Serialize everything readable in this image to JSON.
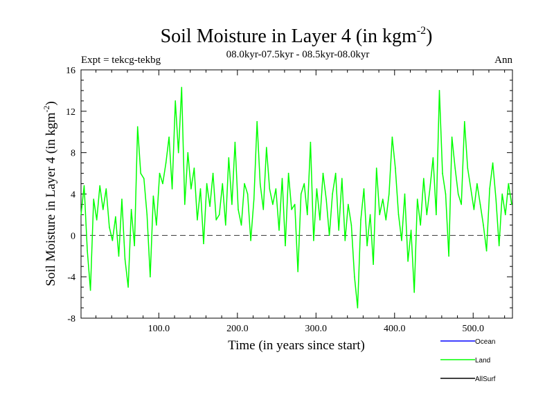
{
  "chart_data": {
    "type": "line",
    "title": "Soil Moisture in Layer 4 (in kgm",
    "title_sup": "-2",
    "title_close": ")",
    "subtitle": "08.0kyr-07.5kyr - 08.5kyr-08.0kyr",
    "expt_label": "Expt = tekcg-tekbg",
    "season_label": "Ann",
    "xlabel": "Time (in years since start)",
    "ylabel": "Soil Moisture in Layer 4 (in kgm",
    "ylabel_sup": "-2",
    "ylabel_close": ")",
    "xlim": [
      1,
      550
    ],
    "ylim": [
      -8,
      16
    ],
    "x_ticks": [
      100,
      200,
      300,
      400,
      500
    ],
    "x_tick_labels": [
      "100.0",
      "200.0",
      "300.0",
      "400.0",
      "500.0"
    ],
    "y_ticks": [
      -8,
      -4,
      0,
      4,
      8,
      12,
      16
    ],
    "y_tick_labels": [
      "-8",
      "-4",
      "0",
      "4",
      "8",
      "12",
      "16"
    ],
    "zero_line": 0,
    "legend": [
      {
        "name": "Ocean",
        "color": "#0000ff"
      },
      {
        "name": "Land",
        "color": "#00ff00"
      },
      {
        "name": "AllSurf",
        "color": "#000000"
      }
    ],
    "series": [
      {
        "name": "Land",
        "color": "#00ff00",
        "x": [
          1,
          5,
          9,
          13,
          17,
          21,
          25,
          29,
          33,
          37,
          41,
          45,
          49,
          53,
          57,
          61,
          65,
          69,
          73,
          77,
          81,
          85,
          89,
          93,
          97,
          101,
          105,
          109,
          113,
          117,
          121,
          125,
          129,
          133,
          137,
          141,
          145,
          149,
          153,
          157,
          161,
          165,
          169,
          173,
          177,
          181,
          185,
          189,
          193,
          197,
          201,
          205,
          209,
          213,
          217,
          221,
          225,
          229,
          233,
          237,
          241,
          245,
          249,
          253,
          257,
          261,
          265,
          269,
          273,
          277,
          281,
          285,
          289,
          293,
          297,
          301,
          305,
          309,
          313,
          317,
          321,
          325,
          329,
          333,
          337,
          341,
          345,
          349,
          353,
          357,
          361,
          365,
          369,
          373,
          377,
          381,
          385,
          389,
          393,
          397,
          401,
          405,
          409,
          413,
          417,
          421,
          425,
          429,
          433,
          437,
          441,
          445,
          449,
          453,
          457,
          461,
          465,
          469,
          473,
          477,
          481,
          485,
          489,
          493,
          497,
          501,
          505,
          509,
          513,
          517,
          521,
          525,
          529,
          533,
          537,
          541,
          545,
          549
        ],
        "values": [
          2.0,
          4.8,
          -1.5,
          -5.3,
          3.5,
          1.5,
          4.8,
          2.5,
          4.5,
          0.8,
          -0.5,
          1.8,
          -2.0,
          3.5,
          -2.3,
          -5.0,
          2.5,
          -1.0,
          10.5,
          6.0,
          5.5,
          2.0,
          -4.0,
          3.8,
          1.0,
          6.0,
          5.0,
          7.0,
          9.5,
          4.5,
          13.0,
          8.0,
          14.3,
          3.0,
          8.0,
          4.5,
          6.5,
          1.5,
          4.5,
          -0.8,
          5.0,
          2.8,
          6.0,
          1.5,
          2.0,
          5.0,
          1.0,
          7.5,
          3.0,
          9.0,
          2.5,
          1.0,
          5.0,
          4.0,
          -0.5,
          3.5,
          11.0,
          5.0,
          2.5,
          8.5,
          4.5,
          3.0,
          4.5,
          0.5,
          5.5,
          -1.0,
          6.0,
          2.5,
          3.0,
          -3.5,
          4.0,
          5.0,
          2.0,
          9.0,
          -0.5,
          4.5,
          1.5,
          6.0,
          3.5,
          0.0,
          4.0,
          6.0,
          0.5,
          5.5,
          -0.5,
          3.0,
          1.0,
          -4.0,
          -7.0,
          1.5,
          4.5,
          -1.0,
          2.0,
          -2.8,
          6.5,
          2.0,
          3.5,
          1.5,
          4.0,
          9.5,
          6.5,
          2.0,
          -0.5,
          4.0,
          -2.5,
          0.5,
          -5.5,
          3.5,
          1.0,
          5.5,
          2.0,
          4.5,
          7.5,
          2.0,
          14.0,
          6.0,
          4.0,
          -2.0,
          9.5,
          6.5,
          4.0,
          3.0,
          11.0,
          6.5,
          4.5,
          2.5,
          5.0,
          3.0,
          1.0,
          -1.5,
          4.5,
          7.0,
          3.5,
          -1.0,
          4.0,
          2.0,
          5.0,
          3.0
        ]
      }
    ]
  }
}
